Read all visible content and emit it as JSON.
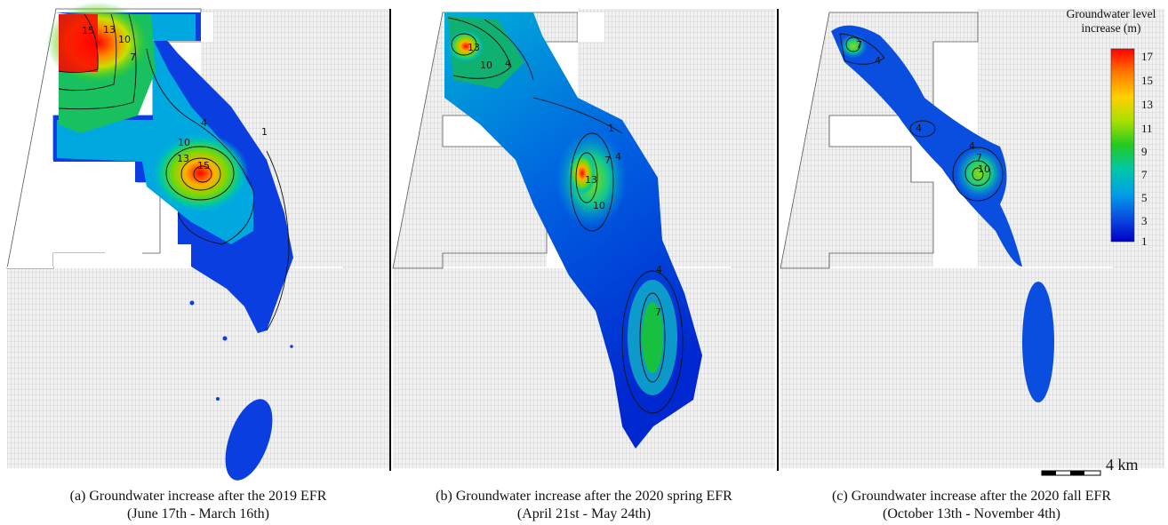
{
  "panels": [
    {
      "caption_line1": "(a) Groundwater increase after the 2019 EFR",
      "caption_line2": "(June 17th - March 16th)",
      "contour_labels": [
        "15",
        "13",
        "10",
        "7",
        "4",
        "1",
        "10",
        "13",
        "15"
      ]
    },
    {
      "caption_line1": "(b) Groundwater increase after the 2020 spring EFR",
      "caption_line2": "(April 21st - May 24th)",
      "contour_labels": [
        "13",
        "10",
        "4",
        "1",
        "7",
        "4",
        "13",
        "10",
        "4",
        "7"
      ]
    },
    {
      "caption_line1": "(c) Groundwater increase after the 2020 fall EFR",
      "caption_line2": "(October 13th - November 4th)",
      "contour_labels": [
        "7",
        "4",
        "4",
        "4",
        "7",
        "10"
      ]
    }
  ],
  "legend": {
    "title_line1": "Groundwater level",
    "title_line2": "increase (m)",
    "ticks": [
      "17",
      "15",
      "13",
      "11",
      "9",
      "7",
      "5",
      "3",
      "1"
    ],
    "colors": [
      "#ff0000",
      "#ff7a00",
      "#ffd000",
      "#a8e000",
      "#22c922",
      "#00c8a8",
      "#00a0e6",
      "#0a4ee0",
      "#0000c8"
    ]
  },
  "scale_bar": {
    "label": "4 km"
  }
}
